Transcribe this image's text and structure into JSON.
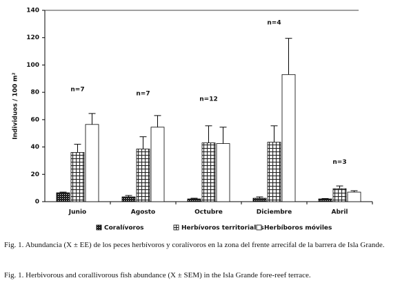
{
  "chart_data": {
    "type": "bar",
    "y_label": "Individuos / 100 m²",
    "categories": [
      "Junio",
      "Agosto",
      "Octubre",
      "Diciembre",
      "Abril"
    ],
    "series": [
      {
        "name": "Coralívoros",
        "color": "#222222",
        "values": [
          6.5,
          3.5,
          2,
          2.5,
          2
        ],
        "errors": [
          0.5,
          1,
          0.5,
          1,
          0.3
        ]
      },
      {
        "name": "Herbívoros territoriales",
        "color": "#222222",
        "values": [
          36,
          38.5,
          43,
          43.5,
          9.5
        ],
        "errors": [
          6,
          9,
          12.5,
          12,
          2
        ]
      },
      {
        "name": "Herbíboros móviles",
        "color": "#ffffff",
        "values": [
          56.5,
          54.5,
          42.5,
          93,
          7
        ],
        "errors": [
          8,
          8.5,
          12,
          26.5,
          1
        ]
      }
    ],
    "annotations": [
      {
        "text": "n=7",
        "x": "Junio",
        "y": 82
      },
      {
        "text": "n=7",
        "x": "Agosto",
        "y": 79
      },
      {
        "text": "n=12",
        "x": "Octubre",
        "y": 75
      },
      {
        "text": "n=4",
        "x": "Diciembre",
        "y": 131
      },
      {
        "text": "n=3",
        "x": "Abril",
        "y": 29
      }
    ],
    "ylim": [
      0,
      140
    ],
    "yticks": [
      0,
      20,
      40,
      60,
      80,
      100,
      120,
      140
    ]
  },
  "captions": [
    "Fig. 1. Abundancia (X ± EE) de los peces herbívoros y coralívoros en la zona del frente arrecifal de la barrera de Isla Grande.",
    "Fig. 1. Herbivorous and corallivorous fish abundance (X ± SEM) in the Isla Grande fore-reef terrace."
  ]
}
